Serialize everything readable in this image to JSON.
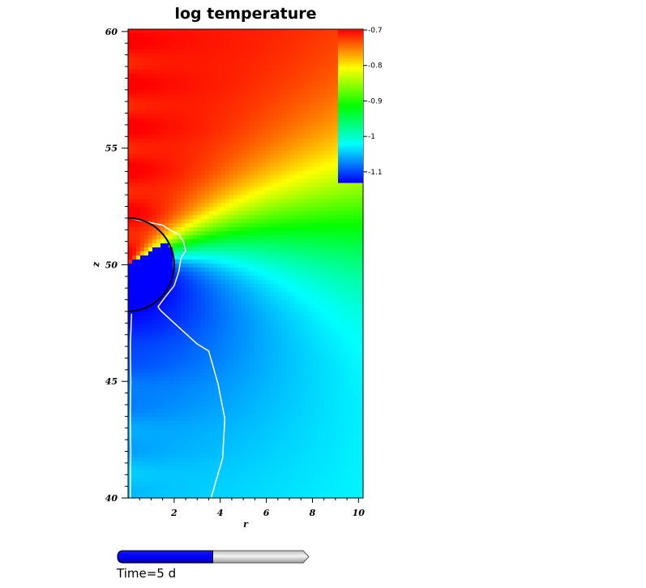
{
  "chart_data": {
    "type": "heatmap",
    "title": "log temperature",
    "xlabel": "r",
    "ylabel": "z",
    "xlim": [
      0,
      10.2
    ],
    "ylim": [
      40,
      60.1
    ],
    "x_ticks": [
      2,
      4,
      6,
      8,
      10
    ],
    "y_ticks": [
      40,
      45,
      50,
      55,
      60
    ],
    "colorbar": {
      "min": -1.13,
      "max": -0.7,
      "ticks": [
        -0.7,
        -0.8,
        -0.9,
        -1,
        -1.1
      ],
      "tick_labels": [
        "-0.7",
        "-0.8",
        "-0.9",
        "-1",
        "-1.1"
      ],
      "colors": [
        "#0000ff",
        "#00ffff",
        "#00ff00",
        "#ffff00",
        "#ff0000"
      ]
    },
    "circle": {
      "center_r": 0,
      "center_z": 50,
      "radius": 2.0
    },
    "time": {
      "label": "Time=5 d",
      "progress": 0.5
    }
  },
  "colors": {
    "fill": "#0000ff",
    "track": "#e2e2e2",
    "circle": "#000000",
    "contour": "#ffffff"
  }
}
